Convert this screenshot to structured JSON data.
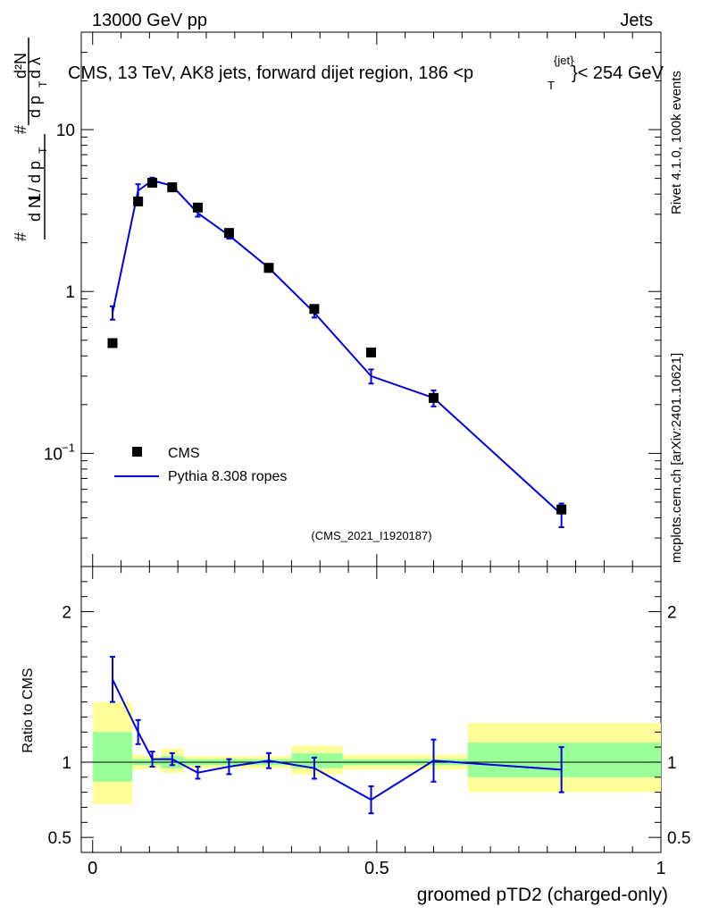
{
  "header": {
    "beam": "13000 GeV pp",
    "group": "Jets",
    "title": "CMS, 13 TeV, AK8 jets, forward dijet region, 186 <p",
    "title_sub": "T",
    "title_sup": "{jet}",
    "title_end": "}< 254 GeV",
    "rivet_label": "Rivet 4.1.0,  100k events",
    "mcplots_label": "mcplots.cern.ch [arXiv:2401.10621]",
    "analysis_id": "(CMS_2021_I1920187)"
  },
  "colors": {
    "mc": "#0000dd",
    "band_inner": "#99ff99",
    "band_outer": "#ffff99",
    "data": "#000000"
  },
  "chart_data": [
    {
      "type": "scatter",
      "title": "CMS, 13 TeV, AK8 jets, forward dijet region, 186 < pT{jet} < 254 GeV",
      "ylabel": "1/N dN/dλ",
      "yscale": "log",
      "ylim": [
        0.02,
        40
      ],
      "xlim": [
        -0.02,
        1.0
      ],
      "y_ticks": [
        {
          "value": 10,
          "base": "10",
          "exp": ""
        },
        {
          "value": 1,
          "base": "1",
          "exp": ""
        },
        {
          "value": 0.1,
          "base": "10",
          "exp": "−1"
        }
      ],
      "legend": {
        "position": "lower-left",
        "entries": [
          "CMS",
          "Pythia 8.308 ropes"
        ]
      },
      "series": [
        {
          "name": "CMS",
          "style": "markers",
          "x": [
            0.035,
            0.08,
            0.105,
            0.14,
            0.185,
            0.24,
            0.31,
            0.39,
            0.49,
            0.6,
            0.825
          ],
          "y": [
            0.48,
            3.6,
            4.7,
            4.4,
            3.3,
            2.3,
            1.4,
            0.78,
            0.42,
            0.22,
            0.045
          ]
        },
        {
          "name": "Pythia 8.308 ropes",
          "style": "line",
          "x": [
            0.035,
            0.08,
            0.105,
            0.14,
            0.185,
            0.24,
            0.31,
            0.39,
            0.49,
            0.6,
            0.825
          ],
          "y": [
            0.74,
            4.2,
            4.85,
            4.5,
            3.05,
            2.22,
            1.4,
            0.74,
            0.3,
            0.22,
            0.042
          ],
          "err": [
            0.07,
            0.4,
            0.2,
            0.15,
            0.15,
            0.1,
            0.08,
            0.05,
            0.03,
            0.025,
            0.007
          ]
        }
      ]
    },
    {
      "type": "line",
      "ylabel": "Ratio to CMS",
      "xlabel": "groomed pTD2 (charged-only)",
      "xlim": [
        -0.02,
        1.0
      ],
      "ylim": [
        0.4,
        2.3
      ],
      "y_ticks": [
        0.5,
        1,
        2
      ],
      "x_ticks": [
        0,
        0.5,
        1
      ],
      "x_tick_labels": [
        "0",
        "0.5",
        "1"
      ],
      "bands": [
        {
          "x0": 0.0,
          "x1": 0.07,
          "inner": [
            0.87,
            1.2
          ],
          "outer": [
            0.72,
            1.4
          ]
        },
        {
          "x0": 0.07,
          "x1": 0.09,
          "inner": [
            0.98,
            1.02
          ],
          "outer": [
            0.95,
            1.05
          ]
        },
        {
          "x0": 0.09,
          "x1": 0.12,
          "inner": [
            0.98,
            1.02
          ],
          "outer": [
            0.96,
            1.04
          ]
        },
        {
          "x0": 0.12,
          "x1": 0.16,
          "inner": [
            0.96,
            1.04
          ],
          "outer": [
            0.93,
            1.09
          ]
        },
        {
          "x0": 0.16,
          "x1": 0.21,
          "inner": [
            0.98,
            1.02
          ],
          "outer": [
            0.96,
            1.04
          ]
        },
        {
          "x0": 0.21,
          "x1": 0.35,
          "inner": [
            0.98,
            1.02
          ],
          "outer": [
            0.96,
            1.04
          ]
        },
        {
          "x0": 0.35,
          "x1": 0.44,
          "inner": [
            0.96,
            1.06
          ],
          "outer": [
            0.92,
            1.11
          ]
        },
        {
          "x0": 0.44,
          "x1": 0.66,
          "inner": [
            0.98,
            1.02
          ],
          "outer": [
            0.95,
            1.05
          ]
        },
        {
          "x0": 0.66,
          "x1": 1.0,
          "inner": [
            0.9,
            1.13
          ],
          "outer": [
            0.8,
            1.26
          ]
        }
      ],
      "series": [
        {
          "name": "Pythia 8.308 ropes / CMS",
          "x": [
            0.035,
            0.08,
            0.105,
            0.14,
            0.185,
            0.24,
            0.31,
            0.39,
            0.49,
            0.6,
            0.825
          ],
          "y": [
            1.55,
            1.2,
            1.02,
            1.02,
            0.93,
            0.97,
            1.01,
            0.96,
            0.75,
            1.01,
            0.95
          ],
          "err": [
            0.15,
            0.08,
            0.05,
            0.04,
            0.04,
            0.05,
            0.05,
            0.07,
            0.09,
            0.14,
            0.15
          ]
        }
      ]
    }
  ]
}
